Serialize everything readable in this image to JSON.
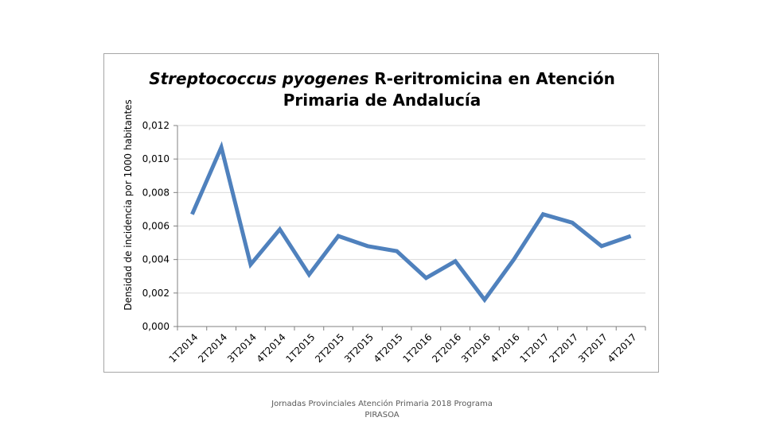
{
  "chart_data": {
    "type": "line",
    "title_italic": "Streptococcus pyogenes",
    "title_rest": " R-eritromicina en Atención",
    "title_line2": "Primaria de Andalucía",
    "xlabel": "",
    "ylabel": "Densidad de incidencia por 1000 habitantes",
    "categories": [
      "1T2014",
      "2T2014",
      "3T2014",
      "4T2014",
      "1T2015",
      "2T2015",
      "3T2015",
      "4T2015",
      "1T2016",
      "2T2016",
      "3T2016",
      "4T2016",
      "1T2017",
      "2T2017",
      "3T2017",
      "4T2017"
    ],
    "series": [
      {
        "values": [
          0.0067,
          0.0107,
          0.0037,
          0.0058,
          0.0031,
          0.0054,
          0.0048,
          0.0045,
          0.0029,
          0.0039,
          0.0016,
          0.004,
          0.0067,
          0.0062,
          0.0048,
          0.0054
        ]
      }
    ],
    "ylim": [
      0,
      0.012
    ],
    "yticks": [
      "0,000",
      "0,002",
      "0,004",
      "0,006",
      "0,008",
      "0,010",
      "0,012"
    ],
    "grid": true,
    "legend": "none",
    "line_color": "#4f81bd"
  },
  "footer": {
    "line1": "Jornadas Provinciales Atención Primaria 2018  Programa",
    "line2": "PIRASOA"
  }
}
